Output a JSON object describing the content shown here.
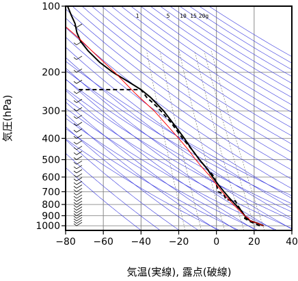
{
  "chart_data": {
    "type": "line",
    "title": "",
    "xlabel": "気温(実線), 露点(破線)",
    "ylabel": "気圧(hPa)",
    "xlim": [
      -80,
      40
    ],
    "ylim": [
      1050,
      100
    ],
    "y_scale": "log",
    "x_ticks": [
      -80,
      -60,
      -40,
      -20,
      0,
      20,
      40
    ],
    "x_tick_labels": [
      "−80",
      "−60",
      "−40",
      "−20",
      "0",
      "20",
      "40"
    ],
    "y_ticks": [
      100,
      200,
      300,
      400,
      500,
      600,
      700,
      800,
      900,
      1000
    ],
    "grid": true,
    "mixing_ratio_labels": [
      "1",
      "5",
      "10",
      "15",
      "20g"
    ],
    "series": [
      {
        "style": "solid-black",
        "color": "#000000",
        "points": [
          [
            25,
            1000
          ],
          [
            22,
            975
          ],
          [
            18,
            950
          ],
          [
            16,
            925
          ],
          [
            15,
            900
          ],
          [
            13,
            850
          ],
          [
            10,
            800
          ],
          [
            7,
            750
          ],
          [
            4,
            700
          ],
          [
            1,
            650
          ],
          [
            -2,
            600
          ],
          [
            -5,
            550
          ],
          [
            -9,
            500
          ],
          [
            -13,
            450
          ],
          [
            -17,
            400
          ],
          [
            -22,
            350
          ],
          [
            -28,
            300
          ],
          [
            -35,
            260
          ],
          [
            -40,
            240
          ],
          [
            -47,
            220
          ],
          [
            -55,
            200
          ],
          [
            -62,
            180
          ],
          [
            -68,
            160
          ],
          [
            -72,
            145
          ],
          [
            -74,
            132
          ],
          [
            -75,
            120
          ],
          [
            -77,
            110
          ],
          [
            -79,
            100
          ]
        ]
      },
      {
        "style": "dashed-black",
        "color": "#000000",
        "points": [
          [
            23,
            1000
          ],
          [
            20,
            975
          ],
          [
            17,
            950
          ],
          [
            15,
            925
          ],
          [
            15,
            900
          ],
          [
            13,
            850
          ],
          [
            11,
            800
          ],
          [
            10,
            770
          ],
          [
            5,
            760
          ],
          [
            4,
            720
          ],
          [
            1,
            700
          ],
          [
            0,
            650
          ],
          [
            -1,
            600
          ],
          [
            -5,
            550
          ],
          [
            -9,
            500
          ],
          [
            -13,
            450
          ],
          [
            -18,
            400
          ],
          [
            -24,
            340
          ],
          [
            -31,
            290
          ],
          [
            -37,
            260
          ],
          [
            -40,
            240
          ],
          [
            -73,
            240
          ]
        ]
      },
      {
        "style": "solid-red",
        "color": "#ff0000",
        "points": [
          [
            25,
            1000
          ],
          [
            22,
            975
          ],
          [
            18,
            950
          ],
          [
            17,
            925
          ],
          [
            15,
            900
          ],
          [
            12,
            850
          ],
          [
            9,
            800
          ],
          [
            6,
            750
          ],
          [
            3,
            700
          ],
          [
            0,
            650
          ],
          [
            -3,
            600
          ],
          [
            -7,
            550
          ],
          [
            -11,
            500
          ],
          [
            -15,
            450
          ],
          [
            -20,
            400
          ],
          [
            -26,
            350
          ],
          [
            -33,
            300
          ],
          [
            -43,
            250
          ],
          [
            -54,
            200
          ],
          [
            -66,
            160
          ],
          [
            -73,
            140
          ],
          [
            -80,
            124
          ]
        ]
      }
    ]
  },
  "colors": {
    "isotherm": "#888888",
    "dry_adiabat": "#3333dd",
    "moist_adiabat": "#3333dd",
    "mixing_ratio": "#666666"
  }
}
